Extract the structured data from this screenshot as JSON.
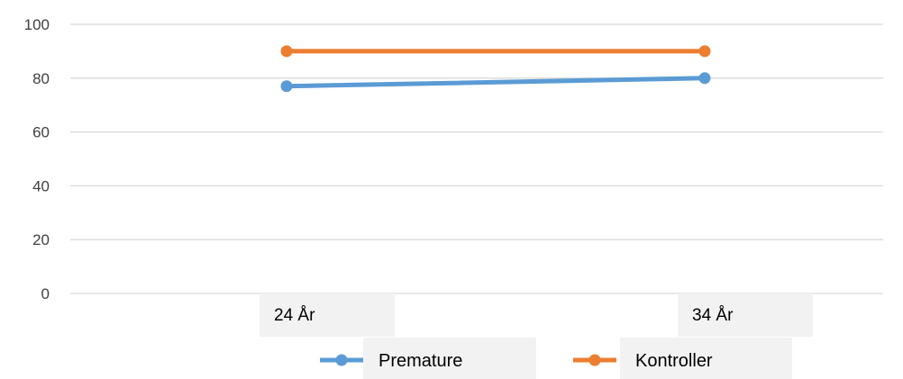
{
  "chart_data": {
    "type": "line",
    "categories": [
      "24 År",
      "34 År"
    ],
    "series": [
      {
        "name": "Premature",
        "values": [
          77,
          80
        ],
        "color": "#5B9BD5"
      },
      {
        "name": "Kontroller",
        "values": [
          90,
          90
        ],
        "color": "#ED7D31"
      }
    ],
    "ylim": [
      0,
      100
    ],
    "yticks": [
      0,
      20,
      40,
      60,
      80,
      100
    ],
    "grid": true,
    "legend": "bottom"
  }
}
